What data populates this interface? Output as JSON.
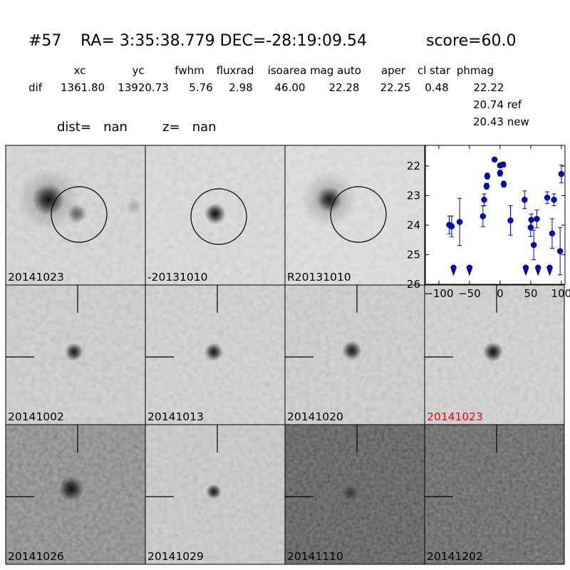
{
  "header": {
    "id": "#57",
    "coords": "RA= 3:35:38.779 DEC=-28:19:09.54",
    "score": "score=60.0"
  },
  "table": {
    "columns": [
      "xc",
      "yc",
      "fwhm",
      "fluxrad",
      "isoarea",
      "mag auto",
      "aper",
      "cl star",
      "phmag"
    ],
    "row_label": "dif",
    "row": [
      "1361.80",
      "13920.73",
      "5.76",
      "2.98",
      "46.00",
      "22.28",
      "22.25",
      "0.48",
      "22.22"
    ],
    "extra": [
      "20.74 ref",
      "20.43 new"
    ]
  },
  "dist": {
    "dist": "dist=   nan",
    "z": "z=   nan"
  },
  "stamps": [
    {
      "label": "20141023",
      "color": "#000000"
    },
    {
      "label": "-20131010",
      "color": "#000000"
    },
    {
      "label": "R20131010",
      "color": "#000000"
    },
    {
      "label": "20141002",
      "color": "#000000"
    },
    {
      "label": "20141013",
      "color": "#000000"
    },
    {
      "label": "20141020",
      "color": "#000000"
    },
    {
      "label": "20141023",
      "color": "#ff0000"
    },
    {
      "label": "20141026",
      "color": "#000000"
    },
    {
      "label": "20141029",
      "color": "#000000"
    },
    {
      "label": "20141110",
      "color": "#000000"
    },
    {
      "label": "20141202",
      "color": "#000000"
    }
  ],
  "chart_data": {
    "type": "scatter",
    "xlim": [
      -122,
      106
    ],
    "ylim": [
      26,
      21.3
    ],
    "xticks": [
      {
        "value": -100,
        "label": "−100"
      },
      {
        "value": -50,
        "label": "−50"
      },
      0,
      50,
      100
    ],
    "yticks": [
      22,
      23,
      24,
      25,
      26
    ],
    "series": [
      {
        "color": "#0000cc",
        "marker": "circle",
        "x": [
          -83,
          -79,
          -66,
          -28,
          -26,
          -22,
          -21,
          -9,
          0,
          0,
          5,
          6,
          17,
          40,
          50,
          51,
          55,
          60,
          77,
          85,
          88,
          98,
          100
        ],
        "values": [
          23.99,
          24.04,
          23.89,
          23.7,
          23.14,
          22.68,
          22.34,
          21.78,
          22.24,
          21.98,
          21.95,
          22.61,
          23.84,
          23.14,
          24.08,
          23.82,
          24.67,
          23.79,
          23.07,
          24.28,
          23.14,
          24.88,
          22.27
        ],
        "errors": [
          0.3,
          0.35,
          0.8,
          0.35,
          0.2,
          0.1,
          0.1,
          0.05,
          0.1,
          0.08,
          0.08,
          0.1,
          0.5,
          0.3,
          0.3,
          0.2,
          0.5,
          0.3,
          0.2,
          0.5,
          0.2,
          0.8,
          0.3
        ]
      },
      {
        "color": "#0000cc",
        "marker": "triangle-down",
        "x": [
          -76,
          -50,
          42,
          62,
          81
        ],
        "values": [
          25.56,
          25.56,
          25.56,
          25.56,
          25.56
        ]
      }
    ]
  }
}
